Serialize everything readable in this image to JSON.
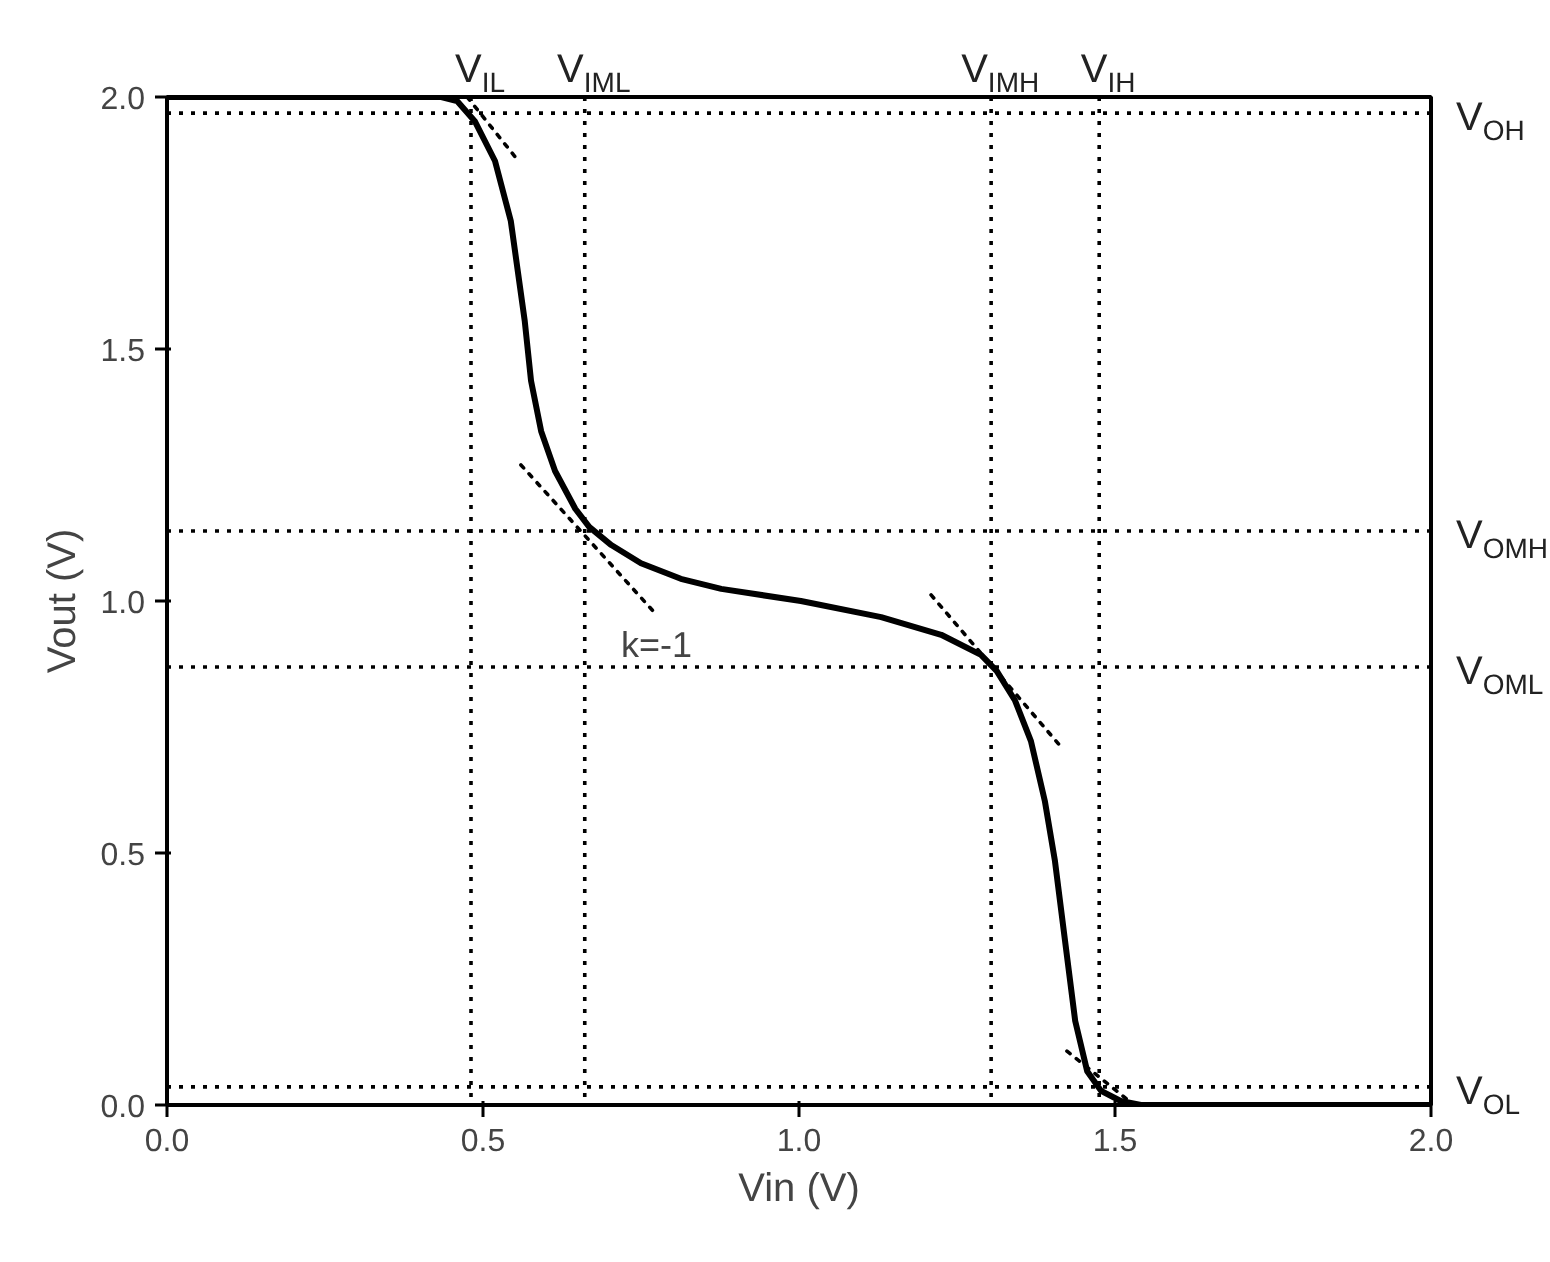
{
  "chart_data": {
    "type": "line",
    "xlabel": "Vin (V)",
    "ylabel": "Vout (V)",
    "xlim": [
      0,
      2
    ],
    "ylim": [
      0,
      2
    ],
    "xticks": [
      {
        "value": 0,
        "label": "0.0"
      },
      0.5,
      {
        "value": 1,
        "label": "1.0"
      },
      1.5,
      {
        "value": 2,
        "label": "2.0"
      }
    ],
    "yticks": [
      {
        "value": 0,
        "label": "0.0"
      },
      0.5,
      {
        "value": 1,
        "label": "1.0"
      },
      1.5,
      {
        "value": 2,
        "label": "2.0"
      }
    ],
    "grid": false,
    "marker": "none",
    "series": [
      {
        "color": "#000000",
        "line_style": "solid",
        "x": [
          0,
          0.434,
          0.459,
          0.487,
          0.519,
          0.544,
          0.566,
          0.576,
          0.592,
          0.614,
          0.646,
          0.668,
          0.703,
          0.75,
          0.813,
          0.877,
          1.003,
          1.13,
          1.225,
          1.288,
          1.313,
          1.342,
          1.367,
          1.389,
          1.405,
          1.421,
          1.437,
          1.456,
          1.478,
          1.509,
          1.541,
          2.0
        ],
        "values": [
          2.0,
          2.0,
          1.992,
          1.952,
          1.873,
          1.754,
          1.556,
          1.437,
          1.337,
          1.258,
          1.183,
          1.147,
          1.111,
          1.075,
          1.044,
          1.024,
          1.0,
          0.968,
          0.933,
          0.893,
          0.861,
          0.802,
          0.722,
          0.603,
          0.484,
          0.325,
          0.167,
          0.067,
          0.028,
          0.008,
          0.0,
          0.0
        ]
      },
      {
        "color": "#000000",
        "line_style": "dotted",
        "x": [
          0.475,
          0.551
        ],
        "values": [
          2.0,
          1.881
        ]
      },
      {
        "color": "#000000",
        "line_style": "dotted",
        "x": [
          0.56,
          0.775
        ],
        "values": [
          1.27,
          0.972
        ]
      },
      {
        "color": "#000000",
        "line_style": "dotted",
        "x": [
          1.209,
          1.415
        ],
        "values": [
          1.012,
          0.71
        ]
      },
      {
        "color": "#000000",
        "line_style": "dotted",
        "x": [
          1.424,
          1.53
        ],
        "values": [
          0.107,
          0.0
        ]
      }
    ],
    "ref_lines": [
      {
        "axis": "x",
        "value": 0.481,
        "label": "V$_{IL}$",
        "color": "#000000",
        "line_style": "dotted"
      },
      {
        "axis": "x",
        "value": 0.661,
        "label": "V$_{IML}$",
        "color": "#000000",
        "line_style": "dotted"
      },
      {
        "axis": "x",
        "value": 1.304,
        "label": "V$_{IMH}$",
        "color": "#000000",
        "line_style": "dotted"
      },
      {
        "axis": "x",
        "value": 1.475,
        "label": "V$_{IH}$",
        "color": "#000000",
        "line_style": "dotted"
      },
      {
        "axis": "y",
        "value": 1.968,
        "label": "V$_{OH}$",
        "color": "#000000",
        "line_style": "dotted"
      },
      {
        "axis": "y",
        "value": 1.139,
        "label": "V$_{OMH}$",
        "color": "#000000",
        "line_style": "dotted"
      },
      {
        "axis": "y",
        "value": 0.869,
        "label": "V$_{OML}$",
        "color": "#000000",
        "line_style": "dotted"
      },
      {
        "axis": "y",
        "value": 0.036,
        "label": "V$_{OL}$",
        "color": "#000000",
        "line_style": "dotted"
      }
    ],
    "annotations": [
      "k=-1"
    ]
  }
}
